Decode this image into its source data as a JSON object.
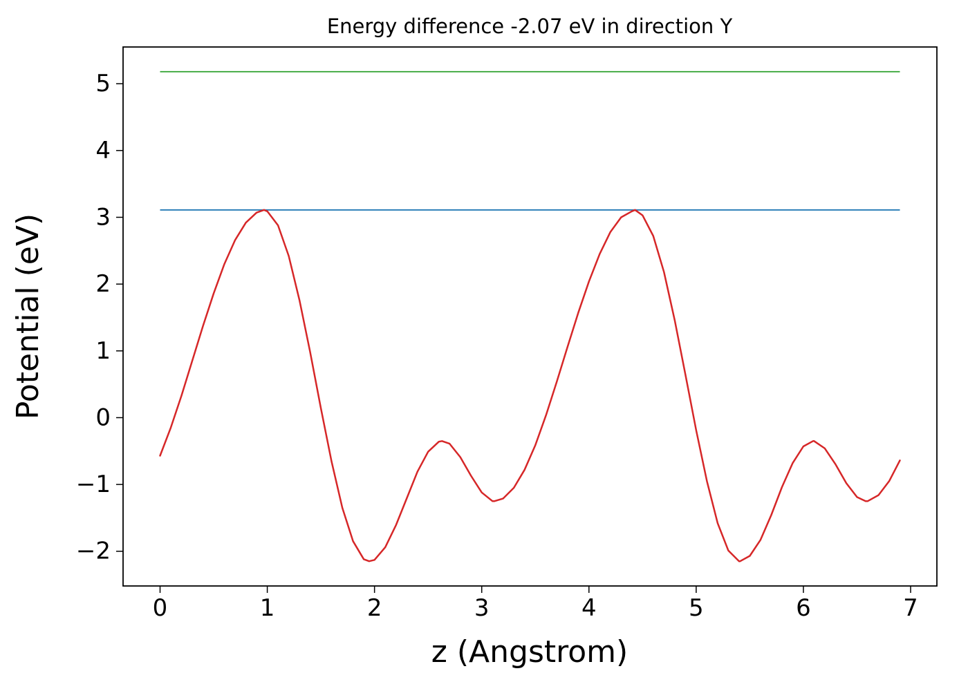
{
  "figure": {
    "background": "#ffffff"
  },
  "chart_data": {
    "type": "line",
    "title": "Energy difference -2.07 eV in direction Y",
    "xlabel": "z (Angstrom)",
    "ylabel": "Potential (eV)",
    "xlim": [
      -0.345,
      7.245
    ],
    "ylim": [
      -2.52,
      5.55
    ],
    "grid": false,
    "legend": "none",
    "energy_difference_eV": -2.07,
    "xticks": [
      {
        "v": 0,
        "label": "0"
      },
      {
        "v": 1,
        "label": "1"
      },
      {
        "v": 2,
        "label": "2"
      },
      {
        "v": 3,
        "label": "3"
      },
      {
        "v": 4,
        "label": "4"
      },
      {
        "v": 5,
        "label": "5"
      },
      {
        "v": 6,
        "label": "6"
      },
      {
        "v": 7,
        "label": "7"
      }
    ],
    "yticks": [
      {
        "v": -2,
        "label": "−2"
      },
      {
        "v": -1,
        "label": "−1"
      },
      {
        "v": 0,
        "label": "0"
      },
      {
        "v": 1,
        "label": "1"
      },
      {
        "v": 2,
        "label": "2"
      },
      {
        "v": 3,
        "label": "3"
      },
      {
        "v": 4,
        "label": "4"
      },
      {
        "v": 5,
        "label": "5"
      }
    ],
    "series": [
      {
        "name": "upper-energy-level",
        "type": "hline",
        "y": 5.18,
        "x_start": 0.0,
        "x_end": 6.9,
        "color": "#2ca02c",
        "width": 1.8
      },
      {
        "name": "lower-energy-level",
        "type": "hline",
        "y": 3.11,
        "x_start": 0.0,
        "x_end": 6.9,
        "color": "#1f77b4",
        "width": 1.8
      },
      {
        "name": "planar-averaged-potential",
        "type": "line",
        "color": "#d62728",
        "width": 2.5,
        "x": [
          0.0,
          0.1,
          0.2,
          0.3,
          0.4,
          0.5,
          0.6,
          0.7,
          0.8,
          0.9,
          0.97,
          1.0,
          1.1,
          1.2,
          1.3,
          1.4,
          1.5,
          1.6,
          1.7,
          1.8,
          1.9,
          1.95,
          2.0,
          2.1,
          2.2,
          2.3,
          2.4,
          2.5,
          2.6,
          2.63,
          2.7,
          2.8,
          2.9,
          3.0,
          3.1,
          3.12,
          3.2,
          3.3,
          3.4,
          3.5,
          3.6,
          3.7,
          3.8,
          3.9,
          4.0,
          4.1,
          4.2,
          4.3,
          4.4,
          4.43,
          4.5,
          4.6,
          4.7,
          4.8,
          4.9,
          5.0,
          5.1,
          5.2,
          5.3,
          5.4,
          5.41,
          5.5,
          5.6,
          5.7,
          5.8,
          5.9,
          6.0,
          6.09,
          6.1,
          6.2,
          6.3,
          6.4,
          6.5,
          6.58,
          6.6,
          6.7,
          6.8,
          6.9
        ],
        "y": [
          -0.57,
          -0.15,
          0.33,
          0.85,
          1.37,
          1.86,
          2.3,
          2.66,
          2.92,
          3.07,
          3.11,
          3.09,
          2.88,
          2.42,
          1.76,
          0.98,
          0.14,
          -0.66,
          -1.35,
          -1.85,
          -2.12,
          -2.15,
          -2.13,
          -1.94,
          -1.61,
          -1.21,
          -0.81,
          -0.51,
          -0.36,
          -0.35,
          -0.39,
          -0.59,
          -0.87,
          -1.12,
          -1.25,
          -1.25,
          -1.21,
          -1.05,
          -0.78,
          -0.41,
          0.04,
          0.54,
          1.06,
          1.57,
          2.04,
          2.45,
          2.78,
          3.0,
          3.09,
          3.11,
          3.03,
          2.72,
          2.18,
          1.46,
          0.64,
          -0.19,
          -0.95,
          -1.58,
          -1.99,
          -2.15,
          -2.15,
          -2.07,
          -1.83,
          -1.46,
          -1.04,
          -0.68,
          -0.43,
          -0.35,
          -0.35,
          -0.46,
          -0.7,
          -0.98,
          -1.19,
          -1.25,
          -1.25,
          -1.16,
          -0.95,
          -0.64
        ]
      }
    ]
  }
}
